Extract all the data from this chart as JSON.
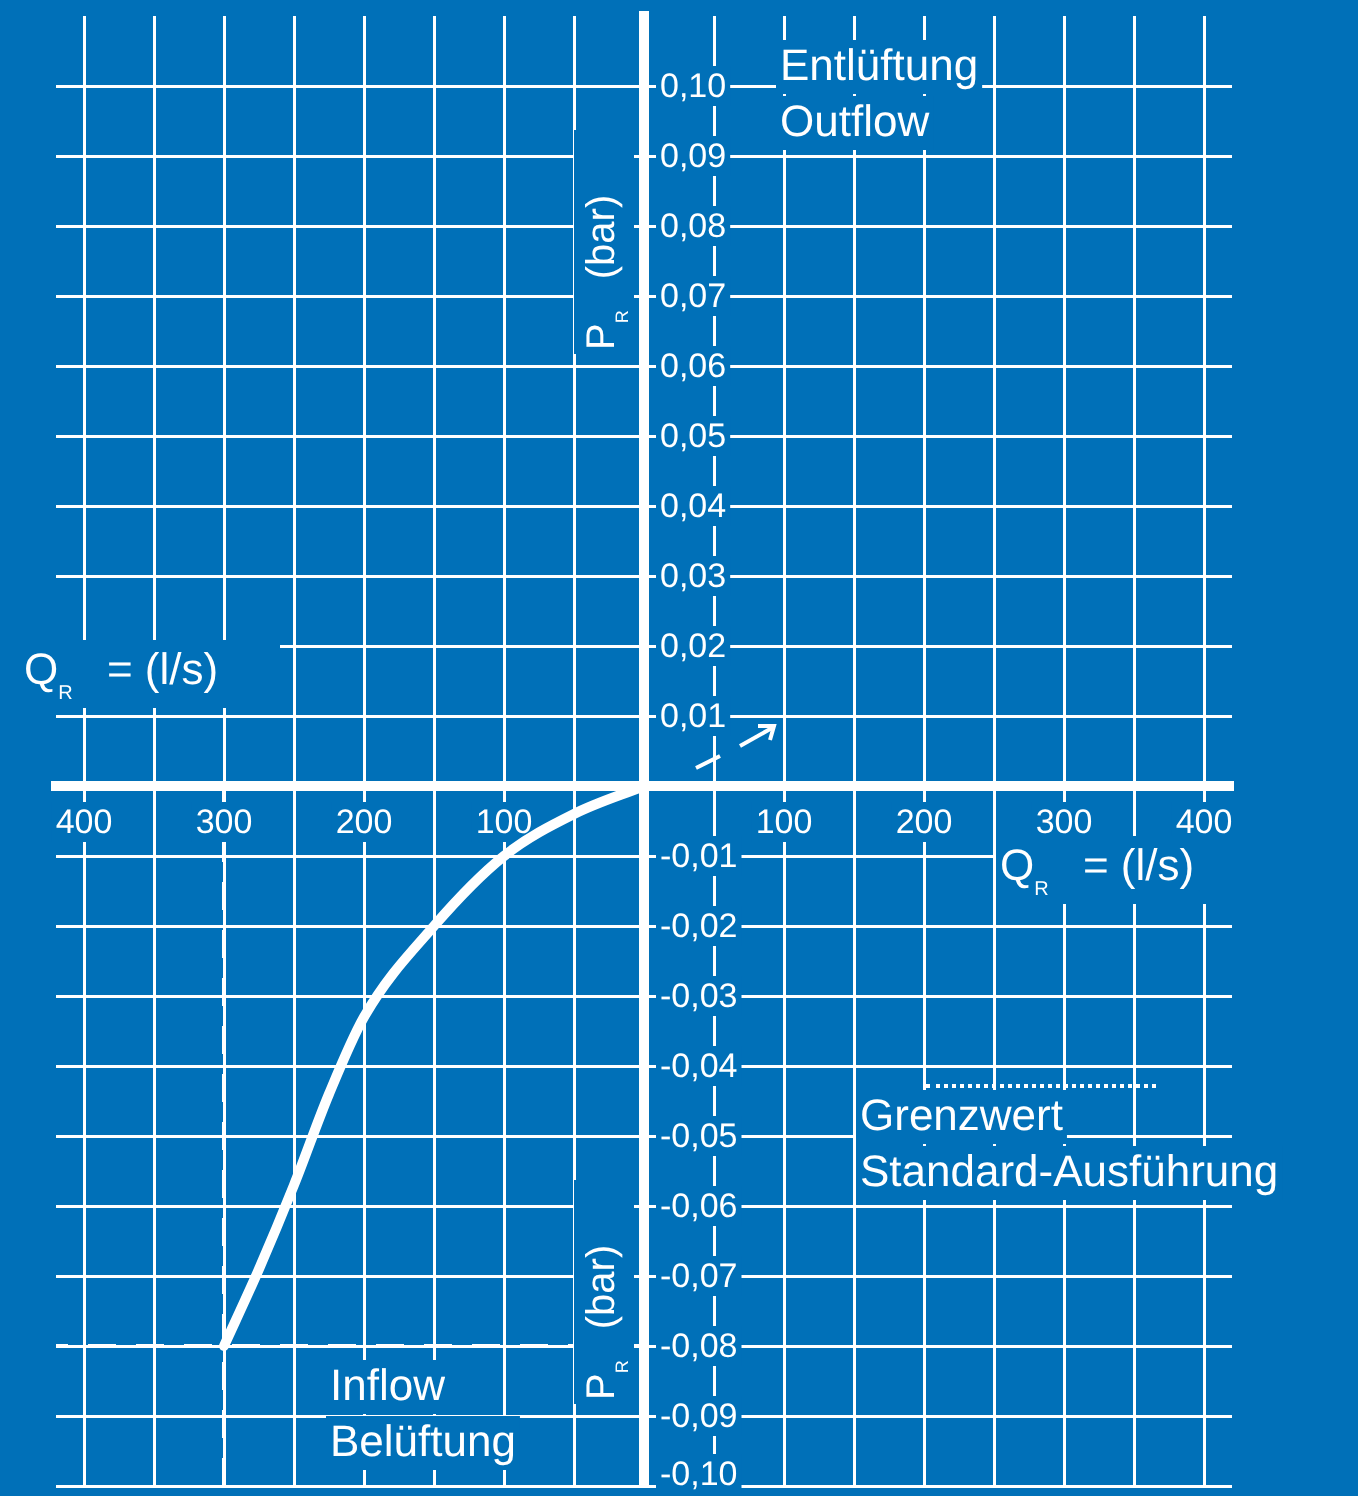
{
  "chart_data": {
    "type": "line",
    "xlabel": "Q$_{R}$ = (l/s)",
    "ylabel": "P$_{R}$ (bar)",
    "annotations": [
      "Entlüftung\nOutflow",
      "Inflow\nBelüftung",
      "Grenzwert\nStandard-Ausführung"
    ],
    "x": [
      -300,
      -275,
      -250,
      -225,
      -200,
      -150,
      -100,
      -50,
      0
    ],
    "series": [
      {
        "color": "#ffffff",
        "values": [
          -0.08,
          -0.069,
          -0.057,
          -0.044,
          -0.033,
          -0.02,
          -0.01,
          -0.004,
          0
        ]
      }
    ],
    "xlim": [
      -420,
      420
    ],
    "xticks": [
      {
        "value": -400,
        "label": "400"
      },
      {
        "value": -350,
        "label": null
      },
      {
        "value": -300,
        "label": "300"
      },
      {
        "value": -250,
        "label": null
      },
      {
        "value": -200,
        "label": "200"
      },
      {
        "value": -150,
        "label": null
      },
      {
        "value": -100,
        "label": "100"
      },
      {
        "value": -50,
        "label": null
      },
      {
        "value": 50,
        "label": null
      },
      100,
      {
        "value": 150,
        "label": null
      },
      200,
      {
        "value": 250,
        "label": null
      },
      300,
      {
        "value": 350,
        "label": null
      },
      400
    ],
    "ylim": [
      -0.1,
      0.11
    ],
    "yticks": [
      {
        "value": -0.1,
        "label": "-0,10"
      },
      {
        "value": -0.09,
        "label": "-0,09"
      },
      {
        "value": -0.08,
        "label": "-0,08"
      },
      {
        "value": -0.07,
        "label": "-0,07"
      },
      {
        "value": -0.06,
        "label": "-0,06"
      },
      {
        "value": -0.05,
        "label": "-0,05"
      },
      {
        "value": -0.04,
        "label": "-0,04"
      },
      {
        "value": -0.03,
        "label": "-0,03"
      },
      {
        "value": -0.02,
        "label": "-0,02"
      },
      {
        "value": -0.01,
        "label": "-0,01"
      },
      {
        "value": 0.01,
        "label": "0,01"
      },
      {
        "value": 0.02,
        "label": "0,02"
      },
      {
        "value": 0.03,
        "label": "0,03"
      },
      {
        "value": 0.04,
        "label": "0,04"
      },
      {
        "value": 0.05,
        "label": "0,05"
      },
      {
        "value": 0.06,
        "label": "0,06"
      },
      {
        "value": 0.07,
        "label": "0,07"
      },
      {
        "value": 0.08,
        "label": "0,08"
      },
      {
        "value": 0.09,
        "label": "0,09"
      },
      {
        "value": 0.1,
        "label": "0,10"
      }
    ],
    "ref_lines": [
      {
        "axis": "x",
        "value": -300,
        "line_style": "dashed",
        "color": "#ffffff"
      },
      {
        "axis": "y",
        "value": -0.08,
        "line_style": "dashed",
        "color": "#ffffff"
      }
    ],
    "grid": true,
    "legend": false,
    "marker": "none",
    "line_style": "solid"
  }
}
